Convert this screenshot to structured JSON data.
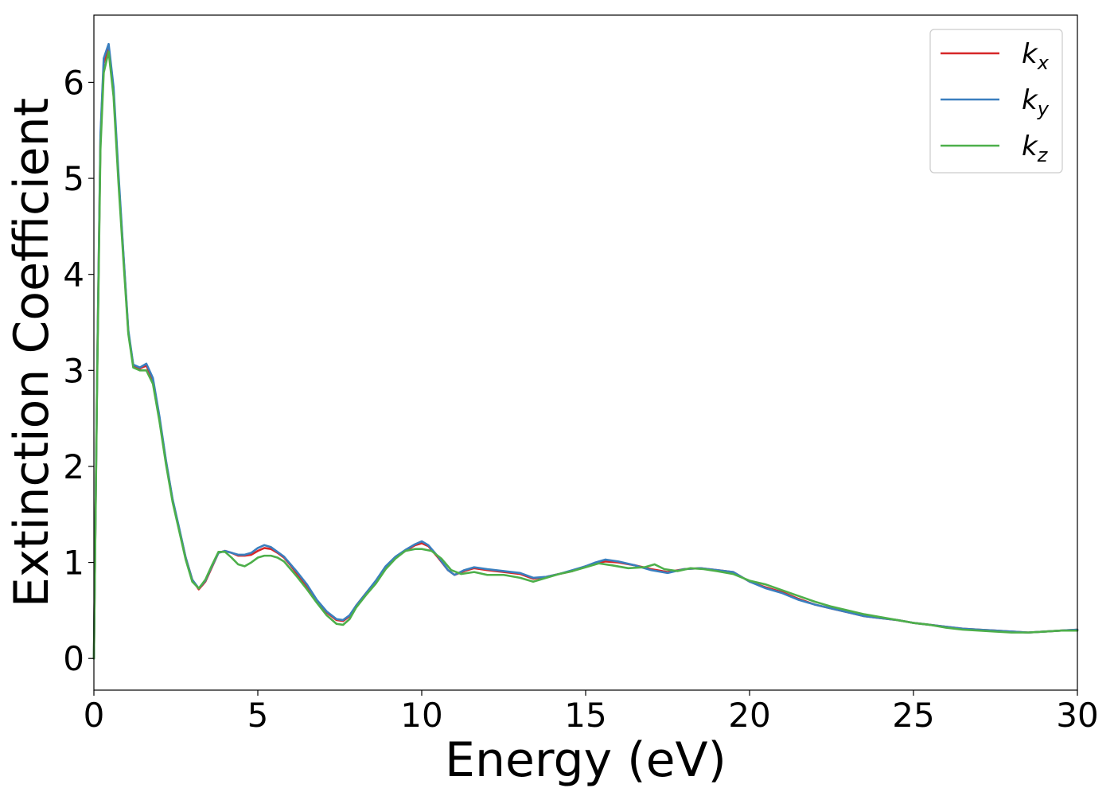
{
  "chart_data": {
    "type": "line",
    "title": "",
    "xlabel": "Energy (eV)",
    "ylabel": "Extinction Coefficient",
    "xlim": [
      0,
      30
    ],
    "ylim": [
      -0.33,
      6.7
    ],
    "xticks": [
      0,
      5,
      10,
      15,
      20,
      25,
      30
    ],
    "yticks": [
      0,
      1,
      2,
      3,
      4,
      5,
      6
    ],
    "grid": false,
    "legend_position": "top-right",
    "series": [
      {
        "name": "k_x",
        "label_main": "k",
        "label_sub": "x",
        "color": "#d62728",
        "points": [
          [
            0,
            0
          ],
          [
            0.1,
            3.0
          ],
          [
            0.2,
            5.4
          ],
          [
            0.3,
            6.2
          ],
          [
            0.45,
            6.36
          ],
          [
            0.6,
            5.9
          ],
          [
            0.75,
            5.0
          ],
          [
            0.9,
            4.2
          ],
          [
            1.05,
            3.4
          ],
          [
            1.2,
            3.05
          ],
          [
            1.4,
            3.02
          ],
          [
            1.6,
            3.05
          ],
          [
            1.8,
            2.9
          ],
          [
            2.0,
            2.5
          ],
          [
            2.2,
            2.05
          ],
          [
            2.4,
            1.65
          ],
          [
            2.6,
            1.35
          ],
          [
            2.8,
            1.05
          ],
          [
            3.0,
            0.82
          ],
          [
            3.2,
            0.72
          ],
          [
            3.4,
            0.8
          ],
          [
            3.6,
            0.95
          ],
          [
            3.8,
            1.1
          ],
          [
            4.0,
            1.12
          ],
          [
            4.2,
            1.1
          ],
          [
            4.4,
            1.07
          ],
          [
            4.6,
            1.07
          ],
          [
            4.8,
            1.08
          ],
          [
            5.0,
            1.12
          ],
          [
            5.2,
            1.15
          ],
          [
            5.4,
            1.14
          ],
          [
            5.6,
            1.1
          ],
          [
            5.8,
            1.05
          ],
          [
            6.0,
            0.97
          ],
          [
            6.2,
            0.88
          ],
          [
            6.5,
            0.75
          ],
          [
            6.8,
            0.6
          ],
          [
            7.1,
            0.48
          ],
          [
            7.4,
            0.4
          ],
          [
            7.6,
            0.39
          ],
          [
            7.8,
            0.44
          ],
          [
            8.0,
            0.55
          ],
          [
            8.3,
            0.68
          ],
          [
            8.6,
            0.8
          ],
          [
            8.9,
            0.95
          ],
          [
            9.2,
            1.05
          ],
          [
            9.5,
            1.12
          ],
          [
            9.8,
            1.18
          ],
          [
            10.0,
            1.2
          ],
          [
            10.2,
            1.17
          ],
          [
            10.5,
            1.05
          ],
          [
            10.8,
            0.92
          ],
          [
            11.0,
            0.87
          ],
          [
            11.3,
            0.91
          ],
          [
            11.6,
            0.94
          ],
          [
            12.0,
            0.92
          ],
          [
            12.5,
            0.9
          ],
          [
            13.0,
            0.88
          ],
          [
            13.4,
            0.83
          ],
          [
            13.8,
            0.85
          ],
          [
            14.2,
            0.88
          ],
          [
            14.6,
            0.91
          ],
          [
            15.0,
            0.96
          ],
          [
            15.3,
            0.99
          ],
          [
            15.6,
            1.01
          ],
          [
            16.0,
            1.0
          ],
          [
            16.5,
            0.97
          ],
          [
            17.0,
            0.93
          ],
          [
            17.5,
            0.9
          ],
          [
            18.0,
            0.93
          ],
          [
            18.5,
            0.94
          ],
          [
            19.0,
            0.92
          ],
          [
            19.5,
            0.9
          ],
          [
            20.0,
            0.8
          ],
          [
            20.5,
            0.74
          ],
          [
            21.0,
            0.69
          ],
          [
            21.5,
            0.62
          ],
          [
            22.0,
            0.56
          ],
          [
            22.5,
            0.52
          ],
          [
            23.0,
            0.48
          ],
          [
            23.5,
            0.44
          ],
          [
            24.0,
            0.42
          ],
          [
            24.5,
            0.4
          ],
          [
            25.0,
            0.37
          ],
          [
            25.5,
            0.35
          ],
          [
            26.0,
            0.33
          ],
          [
            26.5,
            0.31
          ],
          [
            27.0,
            0.3
          ],
          [
            27.5,
            0.29
          ],
          [
            28.0,
            0.28
          ],
          [
            28.5,
            0.27
          ],
          [
            29.0,
            0.28
          ],
          [
            29.5,
            0.29
          ],
          [
            30.0,
            0.3
          ]
        ]
      },
      {
        "name": "k_y",
        "label_main": "k",
        "label_sub": "y",
        "color": "#3a7fbf",
        "points": [
          [
            0,
            0
          ],
          [
            0.1,
            3.0
          ],
          [
            0.2,
            5.45
          ],
          [
            0.3,
            6.25
          ],
          [
            0.45,
            6.4
          ],
          [
            0.6,
            5.95
          ],
          [
            0.75,
            5.05
          ],
          [
            0.9,
            4.22
          ],
          [
            1.05,
            3.42
          ],
          [
            1.2,
            3.06
          ],
          [
            1.4,
            3.03
          ],
          [
            1.6,
            3.07
          ],
          [
            1.8,
            2.92
          ],
          [
            2.0,
            2.52
          ],
          [
            2.2,
            2.06
          ],
          [
            2.4,
            1.66
          ],
          [
            2.6,
            1.36
          ],
          [
            2.8,
            1.05
          ],
          [
            3.0,
            0.82
          ],
          [
            3.2,
            0.73
          ],
          [
            3.4,
            0.81
          ],
          [
            3.6,
            0.96
          ],
          [
            3.8,
            1.1
          ],
          [
            4.0,
            1.12
          ],
          [
            4.2,
            1.1
          ],
          [
            4.4,
            1.08
          ],
          [
            4.6,
            1.08
          ],
          [
            4.8,
            1.1
          ],
          [
            5.0,
            1.15
          ],
          [
            5.2,
            1.18
          ],
          [
            5.4,
            1.16
          ],
          [
            5.6,
            1.11
          ],
          [
            5.8,
            1.06
          ],
          [
            6.0,
            0.98
          ],
          [
            6.2,
            0.9
          ],
          [
            6.5,
            0.77
          ],
          [
            6.8,
            0.61
          ],
          [
            7.1,
            0.49
          ],
          [
            7.4,
            0.41
          ],
          [
            7.6,
            0.4
          ],
          [
            7.8,
            0.45
          ],
          [
            8.0,
            0.55
          ],
          [
            8.3,
            0.68
          ],
          [
            8.6,
            0.81
          ],
          [
            8.9,
            0.96
          ],
          [
            9.2,
            1.06
          ],
          [
            9.5,
            1.13
          ],
          [
            9.8,
            1.19
          ],
          [
            10.0,
            1.22
          ],
          [
            10.2,
            1.18
          ],
          [
            10.5,
            1.06
          ],
          [
            10.8,
            0.92
          ],
          [
            11.0,
            0.87
          ],
          [
            11.3,
            0.92
          ],
          [
            11.6,
            0.95
          ],
          [
            12.0,
            0.93
          ],
          [
            12.5,
            0.91
          ],
          [
            13.0,
            0.89
          ],
          [
            13.4,
            0.84
          ],
          [
            13.8,
            0.85
          ],
          [
            14.2,
            0.88
          ],
          [
            14.6,
            0.92
          ],
          [
            15.0,
            0.96
          ],
          [
            15.3,
            1.0
          ],
          [
            15.6,
            1.03
          ],
          [
            16.0,
            1.01
          ],
          [
            16.5,
            0.97
          ],
          [
            17.0,
            0.92
          ],
          [
            17.5,
            0.89
          ],
          [
            18.0,
            0.93
          ],
          [
            18.5,
            0.94
          ],
          [
            19.0,
            0.92
          ],
          [
            19.5,
            0.9
          ],
          [
            20.0,
            0.8
          ],
          [
            20.5,
            0.73
          ],
          [
            21.0,
            0.68
          ],
          [
            21.5,
            0.61
          ],
          [
            22.0,
            0.56
          ],
          [
            22.5,
            0.52
          ],
          [
            23.0,
            0.48
          ],
          [
            23.5,
            0.44
          ],
          [
            24.0,
            0.42
          ],
          [
            24.5,
            0.4
          ],
          [
            25.0,
            0.37
          ],
          [
            25.5,
            0.35
          ],
          [
            26.0,
            0.33
          ],
          [
            26.5,
            0.31
          ],
          [
            27.0,
            0.3
          ],
          [
            27.5,
            0.29
          ],
          [
            28.0,
            0.28
          ],
          [
            28.5,
            0.27
          ],
          [
            29.0,
            0.28
          ],
          [
            29.5,
            0.29
          ],
          [
            30.0,
            0.3
          ]
        ]
      },
      {
        "name": "k_z",
        "label_main": "k",
        "label_sub": "z",
        "color": "#4daf4a",
        "points": [
          [
            0,
            0
          ],
          [
            0.1,
            2.9
          ],
          [
            0.2,
            5.3
          ],
          [
            0.3,
            6.1
          ],
          [
            0.45,
            6.32
          ],
          [
            0.6,
            5.85
          ],
          [
            0.75,
            4.95
          ],
          [
            0.9,
            4.15
          ],
          [
            1.05,
            3.38
          ],
          [
            1.2,
            3.03
          ],
          [
            1.4,
            3.0
          ],
          [
            1.6,
            3.0
          ],
          [
            1.8,
            2.86
          ],
          [
            2.0,
            2.47
          ],
          [
            2.2,
            2.02
          ],
          [
            2.4,
            1.63
          ],
          [
            2.6,
            1.33
          ],
          [
            2.8,
            1.03
          ],
          [
            3.0,
            0.8
          ],
          [
            3.2,
            0.73
          ],
          [
            3.4,
            0.82
          ],
          [
            3.6,
            0.97
          ],
          [
            3.8,
            1.11
          ],
          [
            4.0,
            1.11
          ],
          [
            4.2,
            1.05
          ],
          [
            4.4,
            0.98
          ],
          [
            4.6,
            0.96
          ],
          [
            4.8,
            1.0
          ],
          [
            5.0,
            1.05
          ],
          [
            5.2,
            1.07
          ],
          [
            5.4,
            1.07
          ],
          [
            5.6,
            1.05
          ],
          [
            5.8,
            1.01
          ],
          [
            6.0,
            0.93
          ],
          [
            6.2,
            0.85
          ],
          [
            6.5,
            0.72
          ],
          [
            6.8,
            0.58
          ],
          [
            7.1,
            0.45
          ],
          [
            7.4,
            0.36
          ],
          [
            7.6,
            0.35
          ],
          [
            7.8,
            0.41
          ],
          [
            8.0,
            0.53
          ],
          [
            8.3,
            0.66
          ],
          [
            8.6,
            0.78
          ],
          [
            8.9,
            0.93
          ],
          [
            9.2,
            1.04
          ],
          [
            9.5,
            1.12
          ],
          [
            9.8,
            1.14
          ],
          [
            10.0,
            1.14
          ],
          [
            10.3,
            1.12
          ],
          [
            10.6,
            1.04
          ],
          [
            10.9,
            0.92
          ],
          [
            11.2,
            0.88
          ],
          [
            11.6,
            0.9
          ],
          [
            12.0,
            0.87
          ],
          [
            12.5,
            0.87
          ],
          [
            13.0,
            0.84
          ],
          [
            13.4,
            0.8
          ],
          [
            13.8,
            0.84
          ],
          [
            14.2,
            0.88
          ],
          [
            14.6,
            0.91
          ],
          [
            15.0,
            0.95
          ],
          [
            15.4,
            0.99
          ],
          [
            15.8,
            0.97
          ],
          [
            16.3,
            0.94
          ],
          [
            16.8,
            0.95
          ],
          [
            17.1,
            0.98
          ],
          [
            17.4,
            0.93
          ],
          [
            17.8,
            0.91
          ],
          [
            18.2,
            0.94
          ],
          [
            18.6,
            0.93
          ],
          [
            19.0,
            0.91
          ],
          [
            19.5,
            0.88
          ],
          [
            20.0,
            0.81
          ],
          [
            20.5,
            0.77
          ],
          [
            21.0,
            0.71
          ],
          [
            21.5,
            0.65
          ],
          [
            22.0,
            0.59
          ],
          [
            22.5,
            0.54
          ],
          [
            23.0,
            0.5
          ],
          [
            23.5,
            0.46
          ],
          [
            24.0,
            0.43
          ],
          [
            24.5,
            0.4
          ],
          [
            25.0,
            0.37
          ],
          [
            25.5,
            0.35
          ],
          [
            26.0,
            0.32
          ],
          [
            26.5,
            0.3
          ],
          [
            27.0,
            0.29
          ],
          [
            27.5,
            0.28
          ],
          [
            28.0,
            0.27
          ],
          [
            28.5,
            0.27
          ],
          [
            29.0,
            0.28
          ],
          [
            29.5,
            0.29
          ],
          [
            30.0,
            0.29
          ]
        ]
      }
    ]
  }
}
